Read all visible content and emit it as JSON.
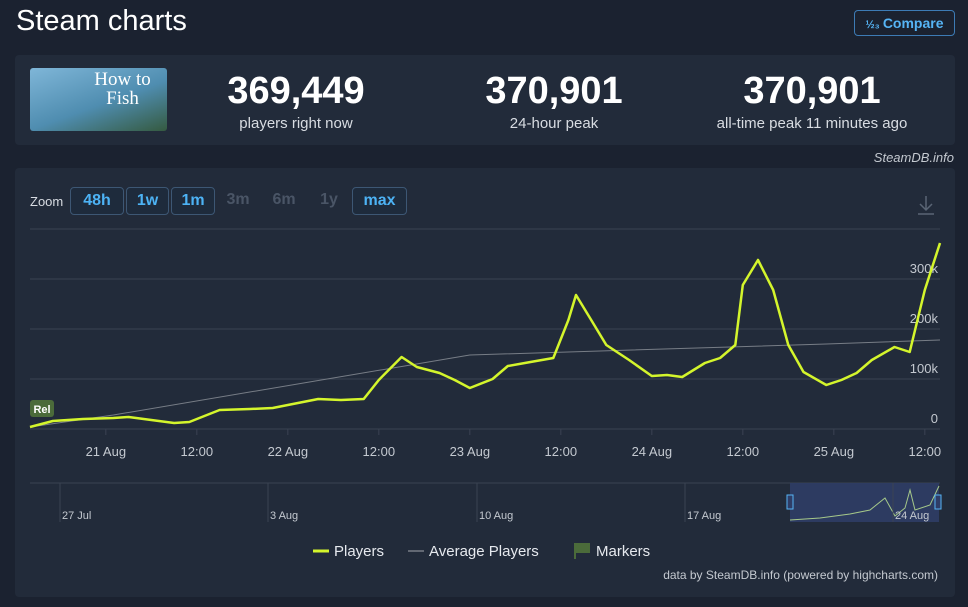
{
  "header": {
    "title": "Steam charts",
    "compare": "Compare"
  },
  "stats": {
    "image_text": "How to Fish",
    "items": [
      {
        "value": "369,449",
        "label": "players right now"
      },
      {
        "value": "370,901",
        "label": "24-hour peak"
      },
      {
        "value": "370,901",
        "label": "all-time peak 11 minutes ago"
      }
    ]
  },
  "source": "SteamDB.info",
  "zoom": {
    "label": "Zoom",
    "buttons": [
      {
        "label": "48h",
        "enabled": true
      },
      {
        "label": "1w",
        "enabled": true
      },
      {
        "label": "1m",
        "enabled": true
      },
      {
        "label": "3m",
        "enabled": false
      },
      {
        "label": "6m",
        "enabled": false
      },
      {
        "label": "1y",
        "enabled": false
      },
      {
        "label": "max",
        "enabled": true
      }
    ]
  },
  "chart_data": {
    "type": "line",
    "x": [
      -10,
      -7,
      -3,
      1,
      3,
      6,
      9,
      11,
      13,
      15,
      19,
      22,
      24,
      28,
      31,
      34,
      36,
      39,
      41,
      44,
      46,
      48,
      51,
      53,
      56,
      59,
      61,
      62,
      64,
      66,
      69,
      72,
      74,
      76,
      79,
      81,
      83,
      84,
      86,
      88,
      90,
      92,
      95,
      97,
      99,
      101,
      104,
      106,
      108,
      110
    ],
    "series": [
      {
        "name": "Players",
        "color": "#d4f52c",
        "values": [
          4000,
          16000,
          20000,
          22000,
          24000,
          18000,
          12000,
          14000,
          26000,
          38000,
          40000,
          42000,
          48000,
          60000,
          58000,
          60000,
          98000,
          144000,
          124000,
          112000,
          98000,
          82000,
          100000,
          126000,
          134000,
          142000,
          218000,
          268000,
          218000,
          168000,
          138000,
          106000,
          108000,
          104000,
          132000,
          142000,
          168000,
          288000,
          338000,
          278000,
          168000,
          114000,
          88000,
          98000,
          112000,
          138000,
          164000,
          154000,
          278000,
          372000
        ]
      },
      {
        "name": "Average Players",
        "color": "#777d86",
        "values": [
          4000,
          null,
          null,
          28000,
          null,
          null,
          null,
          null,
          null,
          null,
          null,
          null,
          null,
          null,
          null,
          null,
          null,
          null,
          null,
          null,
          null,
          148000,
          null,
          null,
          null,
          null,
          null,
          null,
          null,
          null,
          null,
          null,
          null,
          null,
          null,
          null,
          null,
          null,
          null,
          null,
          null,
          null,
          170000,
          null,
          null,
          null,
          null,
          null,
          null,
          178000
        ]
      }
    ],
    "xlim": [
      -10,
      110
    ],
    "xticks": [
      {
        "value": 0,
        "label": "21 Aug"
      },
      {
        "value": 12,
        "label": "12:00"
      },
      {
        "value": 24,
        "label": "22 Aug"
      },
      {
        "value": 36,
        "label": "12:00"
      },
      {
        "value": 48,
        "label": "23 Aug"
      },
      {
        "value": 60,
        "label": "12:00"
      },
      {
        "value": 72,
        "label": "24 Aug"
      },
      {
        "value": 84,
        "label": "12:00"
      },
      {
        "value": 96,
        "label": "25 Aug"
      },
      {
        "value": 108,
        "label": "12:00"
      }
    ],
    "ylim": [
      0,
      400000
    ],
    "yticks": [
      {
        "value": 0,
        "label": "0"
      },
      {
        "value": 100000,
        "label": "100k"
      },
      {
        "value": 200000,
        "label": "200k"
      },
      {
        "value": 300000,
        "label": "300k"
      },
      {
        "value": 400000,
        "label": ""
      }
    ],
    "grid": true,
    "marker_label": "Rel",
    "legend_markers": "Markers",
    "navigator_labels": [
      "27 Jul",
      "3 Aug",
      "10 Aug",
      "17 Aug",
      "24 Aug"
    ],
    "credit": "data by SteamDB.info (powered by highcharts.com)"
  }
}
